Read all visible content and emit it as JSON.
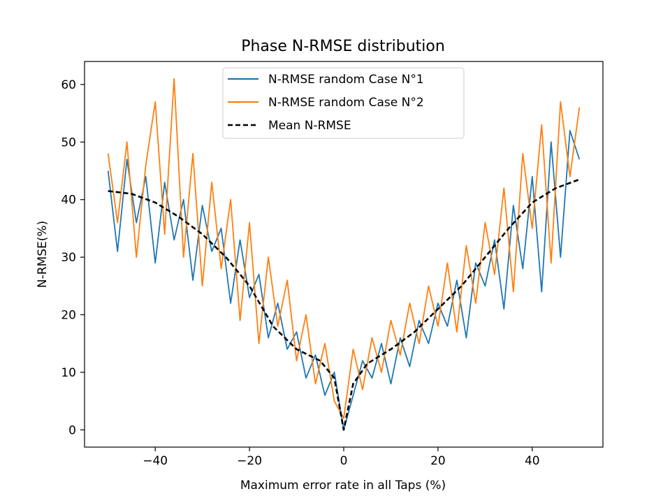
{
  "chart_data": {
    "type": "line",
    "title": "Phase N-RMSE distribution",
    "xlabel": "Maximum error rate in all Taps (%)",
    "ylabel": "N-RMSE(%)",
    "xlim": [
      -55.0,
      55.0
    ],
    "ylim": [
      -3.0,
      64.0
    ],
    "xticks": [
      -40,
      -20,
      0,
      20,
      40
    ],
    "xtick_labels": [
      "−40",
      "−20",
      "0",
      "20",
      "40"
    ],
    "yticks": [
      0,
      10,
      20,
      30,
      40,
      50,
      60
    ],
    "ytick_labels": [
      "0",
      "10",
      "20",
      "30",
      "40",
      "50",
      "60"
    ],
    "grid": false,
    "legend_position": "top-center",
    "series": [
      {
        "name": "N-RMSE random Case N°1",
        "color": "#1f77b4",
        "style": "solid",
        "x": [
          -50,
          -48,
          -46,
          -44,
          -42,
          -40,
          -38,
          -36,
          -34,
          -32,
          -30,
          -28,
          -26,
          -24,
          -22,
          -20,
          -18,
          -16,
          -14,
          -12,
          -10,
          -8,
          -6,
          -4,
          -2,
          0,
          2,
          4,
          6,
          8,
          10,
          12,
          14,
          16,
          18,
          20,
          22,
          24,
          26,
          28,
          30,
          32,
          34,
          36,
          38,
          40,
          42,
          44,
          46,
          48,
          50
        ],
        "y": [
          45,
          31,
          47,
          36,
          44,
          29,
          43,
          33,
          40,
          26,
          39,
          31,
          35,
          22,
          33,
          23,
          27,
          16,
          22,
          14,
          17,
          9,
          13,
          6,
          10,
          0,
          6,
          12,
          9,
          15,
          8,
          16,
          11,
          19,
          15,
          22,
          18,
          26,
          16,
          29,
          25,
          33,
          21,
          39,
          28,
          44,
          24,
          50,
          30,
          52,
          47
        ]
      },
      {
        "name": "N-RMSE random Case N°2",
        "color": "#ff7f0e",
        "style": "solid",
        "x": [
          -50,
          -48,
          -46,
          -44,
          -42,
          -40,
          -38,
          -36,
          -34,
          -32,
          -30,
          -28,
          -26,
          -24,
          -22,
          -20,
          -18,
          -16,
          -14,
          -12,
          -10,
          -8,
          -6,
          -4,
          -2,
          0,
          2,
          4,
          6,
          8,
          10,
          12,
          14,
          16,
          18,
          20,
          22,
          24,
          26,
          28,
          30,
          32,
          34,
          36,
          38,
          40,
          42,
          44,
          46,
          48,
          50
        ],
        "y": [
          48,
          36,
          50,
          30,
          46,
          57,
          34,
          61,
          30,
          48,
          25,
          43,
          28,
          40,
          19,
          36,
          15,
          30,
          18,
          26,
          12,
          20,
          8,
          15,
          5,
          2,
          14,
          7,
          16,
          10,
          19,
          13,
          22,
          15,
          25,
          18,
          29,
          17,
          32,
          22,
          36,
          27,
          42,
          24,
          48,
          35,
          53,
          29,
          57,
          44,
          56
        ]
      },
      {
        "name": "Mean N-RMSE",
        "color": "#000000",
        "style": "dashed",
        "x": [
          -50,
          -45,
          -40,
          -35,
          -30,
          -25,
          -20,
          -15,
          -10,
          -5,
          -2,
          0,
          2,
          5,
          10,
          15,
          20,
          25,
          30,
          35,
          40,
          45,
          50
        ],
        "y": [
          41.5,
          41.0,
          39.5,
          37.0,
          34.0,
          30.0,
          25.0,
          18.0,
          14.0,
          12.0,
          9.0,
          0.0,
          8.0,
          11.5,
          14.0,
          17.0,
          21.0,
          25.0,
          30.0,
          35.0,
          39.5,
          42.0,
          43.5
        ]
      }
    ]
  }
}
